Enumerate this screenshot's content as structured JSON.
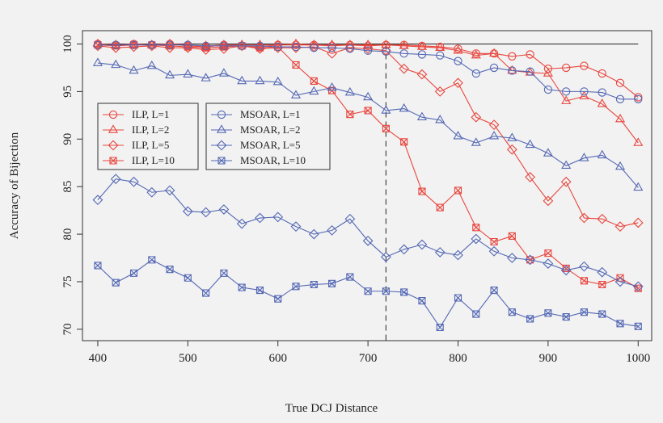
{
  "chart_data": {
    "type": "line",
    "x_label": "True DCJ Distance",
    "y_label": "Accuracy of Bijection",
    "x": [
      400,
      420,
      440,
      460,
      480,
      500,
      520,
      540,
      560,
      580,
      600,
      620,
      640,
      660,
      680,
      700,
      720,
      740,
      760,
      780,
      800,
      820,
      840,
      860,
      880,
      900,
      920,
      940,
      960,
      980,
      1000
    ],
    "series": [
      {
        "name": "ILP, L=1",
        "color": "#e8463e",
        "marker": "circle",
        "values": [
          100,
          99.9,
          100,
          99.9,
          100,
          99.8,
          99.7,
          99.9,
          99.8,
          99.7,
          99.9,
          99.9,
          99.9,
          99.8,
          99.9,
          99.8,
          99.9,
          99.9,
          99.8,
          99.7,
          99.5,
          99.0,
          99.0,
          98.7,
          98.9,
          97.4,
          97.5,
          97.7,
          96.9,
          95.9,
          94.4
        ]
      },
      {
        "name": "ILP, L=2",
        "color": "#e8463e",
        "marker": "triangle",
        "values": [
          100,
          99.9,
          99.9,
          99.9,
          100,
          99.9,
          99.8,
          99.9,
          99.9,
          99.9,
          99.9,
          100,
          99.9,
          99.9,
          99.9,
          99.9,
          99.9,
          99.8,
          99.7,
          99.6,
          99.3,
          98.8,
          99.0,
          97.2,
          97.0,
          96.9,
          94.0,
          94.5,
          93.7,
          92.1,
          89.6
        ]
      },
      {
        "name": "ILP, L=5",
        "color": "#e8463e",
        "marker": "diamond",
        "values": [
          99.8,
          99.6,
          99.7,
          99.8,
          99.6,
          99.6,
          99.4,
          99.5,
          99.8,
          99.5,
          99.6,
          99.6,
          99.7,
          99.0,
          99.6,
          99.5,
          99.3,
          97.4,
          96.8,
          95.0,
          95.9,
          92.3,
          91.5,
          88.9,
          86.0,
          83.5,
          85.5,
          81.7,
          81.6,
          80.8,
          81.2
        ]
      },
      {
        "name": "ILP, L=10",
        "color": "#e8463e",
        "marker": "square-x",
        "values": [
          99.9,
          99.8,
          99.9,
          99.9,
          99.8,
          99.7,
          99.6,
          99.7,
          99.8,
          99.6,
          99.7,
          97.8,
          96.1,
          95.1,
          92.6,
          93.0,
          91.1,
          89.7,
          84.5,
          82.8,
          84.6,
          80.7,
          79.2,
          79.8,
          77.3,
          78.0,
          76.4,
          75.1,
          74.7,
          75.4,
          74.3
        ]
      },
      {
        "name": "MSOAR, L=1",
        "color": "#5468b4",
        "marker": "circle",
        "values": [
          99.9,
          99.9,
          99.9,
          99.9,
          99.9,
          99.9,
          99.8,
          99.8,
          99.8,
          99.8,
          99.7,
          99.7,
          99.6,
          99.6,
          99.5,
          99.3,
          99.2,
          99.0,
          98.9,
          98.8,
          98.2,
          96.9,
          97.5,
          97.2,
          97.1,
          95.2,
          95.0,
          95.0,
          94.9,
          94.2,
          94.2
        ]
      },
      {
        "name": "MSOAR, L=2",
        "color": "#5468b4",
        "marker": "triangle",
        "values": [
          98.0,
          97.8,
          97.2,
          97.7,
          96.7,
          96.8,
          96.4,
          96.9,
          96.1,
          96.1,
          96.0,
          94.6,
          95.0,
          95.4,
          94.9,
          94.4,
          93.0,
          93.2,
          92.3,
          92.0,
          90.3,
          89.6,
          90.3,
          90.1,
          89.4,
          88.5,
          87.2,
          88.0,
          88.3,
          87.1,
          84.9
        ]
      },
      {
        "name": "MSOAR, L=5",
        "color": "#5468b4",
        "marker": "diamond",
        "values": [
          83.6,
          85.8,
          85.5,
          84.4,
          84.6,
          82.4,
          82.3,
          82.6,
          81.1,
          81.7,
          81.8,
          80.8,
          80.0,
          80.4,
          81.6,
          79.3,
          77.6,
          78.4,
          78.9,
          78.1,
          77.8,
          79.5,
          78.2,
          77.5,
          77.3,
          76.9,
          76.2,
          76.6,
          76.0,
          75.0,
          74.5
        ]
      },
      {
        "name": "MSOAR, L=10",
        "color": "#5468b4",
        "marker": "square-x",
        "values": [
          76.7,
          74.9,
          75.9,
          77.3,
          76.3,
          75.4,
          73.8,
          75.9,
          74.4,
          74.1,
          73.2,
          74.5,
          74.7,
          74.8,
          75.5,
          74.0,
          74.0,
          73.9,
          73.0,
          70.2,
          73.3,
          71.6,
          74.1,
          71.8,
          71.1,
          71.7,
          71.3,
          71.8,
          71.6,
          70.6,
          70.3
        ]
      }
    ],
    "xlim": [
      383,
      1015
    ],
    "ylim": [
      68.8,
      101.4
    ],
    "xticks": [
      400,
      500,
      600,
      700,
      800,
      900,
      1000
    ],
    "yticks": [
      70,
      75,
      80,
      85,
      90,
      95,
      100
    ],
    "hline": 100,
    "vline": 720,
    "legend_columns": 2,
    "grid": false
  }
}
